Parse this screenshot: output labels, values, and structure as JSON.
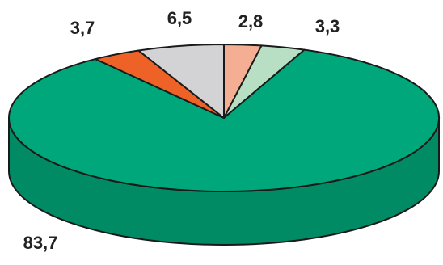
{
  "chart_data": {
    "type": "pie",
    "style": "3d",
    "legend": "none",
    "slices": [
      {
        "label": "2,8",
        "value": 2.8,
        "color": "#F4AE94"
      },
      {
        "label": "3,3",
        "value": 3.3,
        "color": "#B8DEC4"
      },
      {
        "label": "83,7",
        "value": 83.7,
        "color": "#00A77A",
        "side_color": "#008B64"
      },
      {
        "label": "3,7",
        "value": 3.7,
        "color": "#EE6227"
      },
      {
        "label": "6,5",
        "value": 6.5,
        "color": "#D3D3D6"
      }
    ]
  }
}
